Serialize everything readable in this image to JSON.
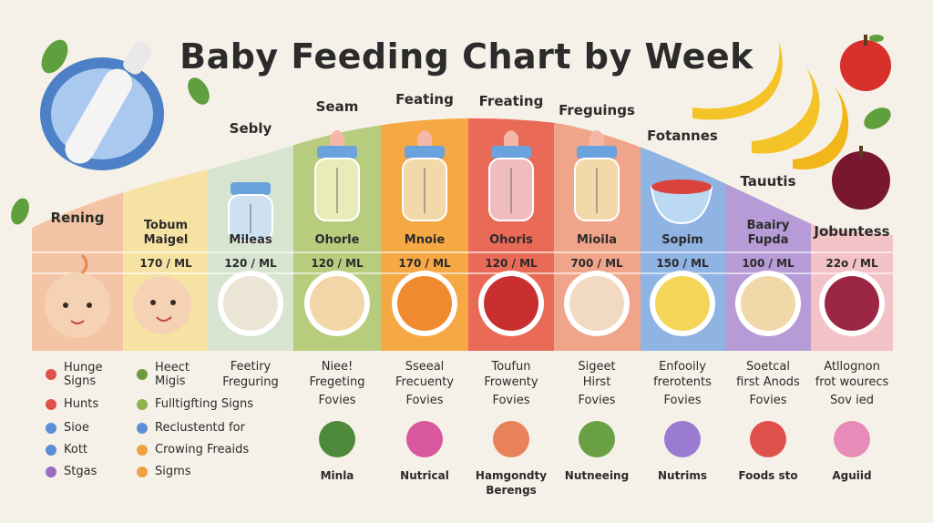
{
  "title": "Baby Feeding Chart by Week",
  "columns": [
    {
      "head": "Rening",
      "title": "",
      "amount": "",
      "bottom": ""
    },
    {
      "head": "",
      "title": "Tobum\nMaigel",
      "amount": "170 / ML",
      "bottom": ""
    },
    {
      "head": "Sebly",
      "title": "Mileas",
      "amount": "120 / ML",
      "bottom": "Feetiry\nFreguring"
    },
    {
      "head": "Seam",
      "title": "Ohorle",
      "amount": "120 / ML",
      "bottom": "Niee!\nFregeting"
    },
    {
      "head": "Feating",
      "title": "Mnoie",
      "amount": "170 / ML",
      "bottom": "Sseeal\nFrecuenty"
    },
    {
      "head": "Freating",
      "title": "Ohoris",
      "amount": "120 / ML",
      "bottom": "Toufun\nFrowenty"
    },
    {
      "head": "Freguings",
      "title": "Mioila",
      "amount": "700 / ML",
      "bottom": "Sigeet\nHirst"
    },
    {
      "head": "Fotannes",
      "title": "Sopim",
      "amount": "150 / ML",
      "bottom": "Enfooily\nfrerotents"
    },
    {
      "head": "Tauutis",
      "title": "Baairy\nFupda",
      "amount": "100 / ML",
      "bottom": "Soetcal\nfirst Anods"
    },
    {
      "head": "Jobuntess",
      "title": "",
      "amount": "22o / ML",
      "bottom": "Atllognon\nfrot wourecs"
    }
  ],
  "signs_left": [
    {
      "text": "Hunge\nSigns",
      "color": "#e0514c"
    },
    {
      "text": "Hunts",
      "color": "#e0514c"
    },
    {
      "text": "Sioe",
      "color": "#5b8ed6"
    },
    {
      "text": "Kott",
      "color": "#5b8ed6"
    },
    {
      "text": "Stgas",
      "color": "#9a6cc4"
    }
  ],
  "signs_mid": [
    {
      "text": "Heect\nMigis",
      "color": "#6f9a3c"
    },
    {
      "text": "Fulltigfting Signs",
      "color": "#8fb24a"
    },
    {
      "text": "Reclustentd for",
      "color": "#5b8ed6"
    },
    {
      "text": "Crowing Freaids",
      "color": "#f0a040"
    },
    {
      "text": "Sigms",
      "color": "#f0a040"
    }
  ],
  "fovies": [
    "Fovies",
    "Fovies",
    "Fovies",
    "Fovies",
    "Fovies",
    "Fovies",
    "Sov ied"
  ],
  "bottom_labels": [
    "Minla",
    "Nutrical",
    "Hamgondty\nBerengs",
    "Nutneeing",
    "Nutrims",
    "Foods sto",
    "Aguiid"
  ],
  "colors": {
    "background": "#f6f1e8",
    "band": [
      "#f4c4a6",
      "#f6e3a3",
      "#d7e4cf",
      "#b8cc7e",
      "#f5a844",
      "#ea6a58",
      "#f0a58b",
      "#8fb3e3",
      "#b69bd6",
      "#f3c2c7"
    ]
  }
}
